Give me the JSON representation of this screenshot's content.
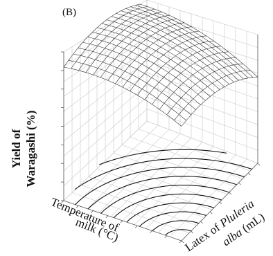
{
  "panel_label": "(B)",
  "chart_data": {
    "type": "surface",
    "title": "",
    "zlabel": "Yield of Waragashi (%)",
    "zlabel_lines": [
      "Yield of",
      "Waragashi (%)"
    ],
    "xlabel": "Temperature of milk (°C)",
    "xlabel_lines": [
      "Temperature of",
      "milk (°C)"
    ],
    "ylabel": "Latex of Pluleria alba (mL)",
    "ylabel_parts": [
      "Latex of ",
      "Pluleria",
      " alba (mL)"
    ],
    "grid": true,
    "contour_projection": true,
    "surface_mesh": {
      "rows": 16,
      "cols": 16
    },
    "contour_levels": 10
  }
}
